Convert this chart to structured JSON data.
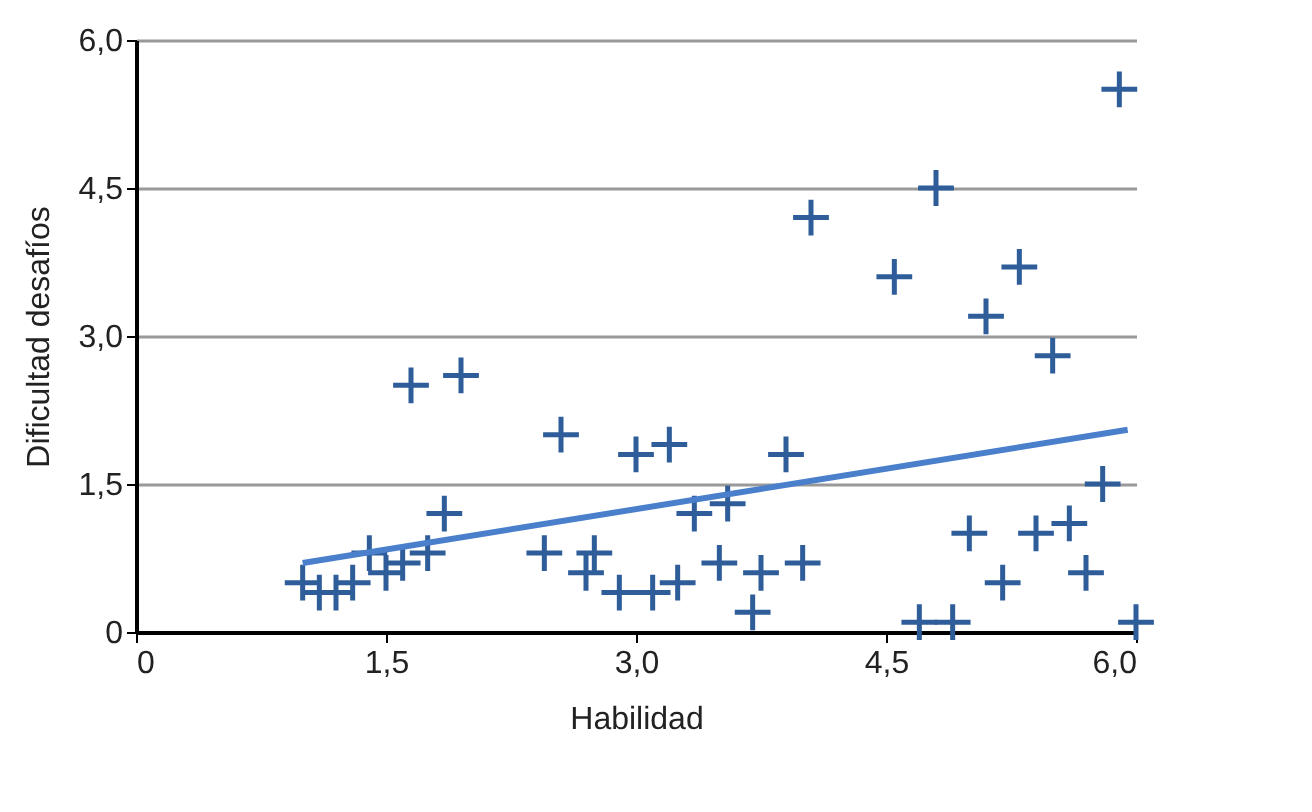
{
  "chart_data": {
    "type": "scatter",
    "xlabel": "Habilidad",
    "ylabel": "Dificultad desafíos",
    "xlim": [
      0,
      6
    ],
    "ylim": [
      0,
      6
    ],
    "xticks": [
      0,
      {
        "value": 1.5,
        "label": "1,5"
      },
      {
        "value": 3,
        "label": "3,0"
      },
      {
        "value": 4.5,
        "label": "4,5"
      },
      {
        "value": 6,
        "label": "6,0"
      }
    ],
    "yticks": [
      0,
      {
        "value": 1.5,
        "label": "1,5"
      },
      {
        "value": 3,
        "label": "3,0"
      },
      {
        "value": 4.5,
        "label": "4,5"
      },
      {
        "value": 6,
        "label": "6,0"
      }
    ],
    "grid": "y",
    "series": [
      {
        "color": "#2f5d9a",
        "marker": "cross",
        "x": [
          1.0,
          1.1,
          1.2,
          1.3,
          1.4,
          1.5,
          1.6,
          1.65,
          1.75,
          1.85,
          1.95,
          2.45,
          2.55,
          2.7,
          2.75,
          2.9,
          3.0,
          3.1,
          3.2,
          3.25,
          3.35,
          3.5,
          3.55,
          3.7,
          3.75,
          3.9,
          4.0,
          4.05,
          4.55,
          4.7,
          4.8,
          4.9,
          5.0,
          5.1,
          5.2,
          5.3,
          5.4,
          5.5,
          5.6,
          5.7,
          5.8,
          5.9,
          6.0
        ],
        "values": [
          0.5,
          0.4,
          0.4,
          0.5,
          0.8,
          0.6,
          0.7,
          2.5,
          0.8,
          1.2,
          2.6,
          0.8,
          2.0,
          0.6,
          0.8,
          0.4,
          1.8,
          0.4,
          1.9,
          0.5,
          1.2,
          0.7,
          1.3,
          0.2,
          0.6,
          1.8,
          0.7,
          4.2,
          3.6,
          0.1,
          4.5,
          0.1,
          1.0,
          3.2,
          0.5,
          3.7,
          1.0,
          2.8,
          1.1,
          0.6,
          1.5,
          5.5,
          0.1
        ]
      },
      {
        "type": "line",
        "marker": "none",
        "color": "#4a7fcc",
        "x": [
          1.0,
          5.95
        ],
        "values": [
          0.7,
          2.05
        ]
      }
    ]
  }
}
